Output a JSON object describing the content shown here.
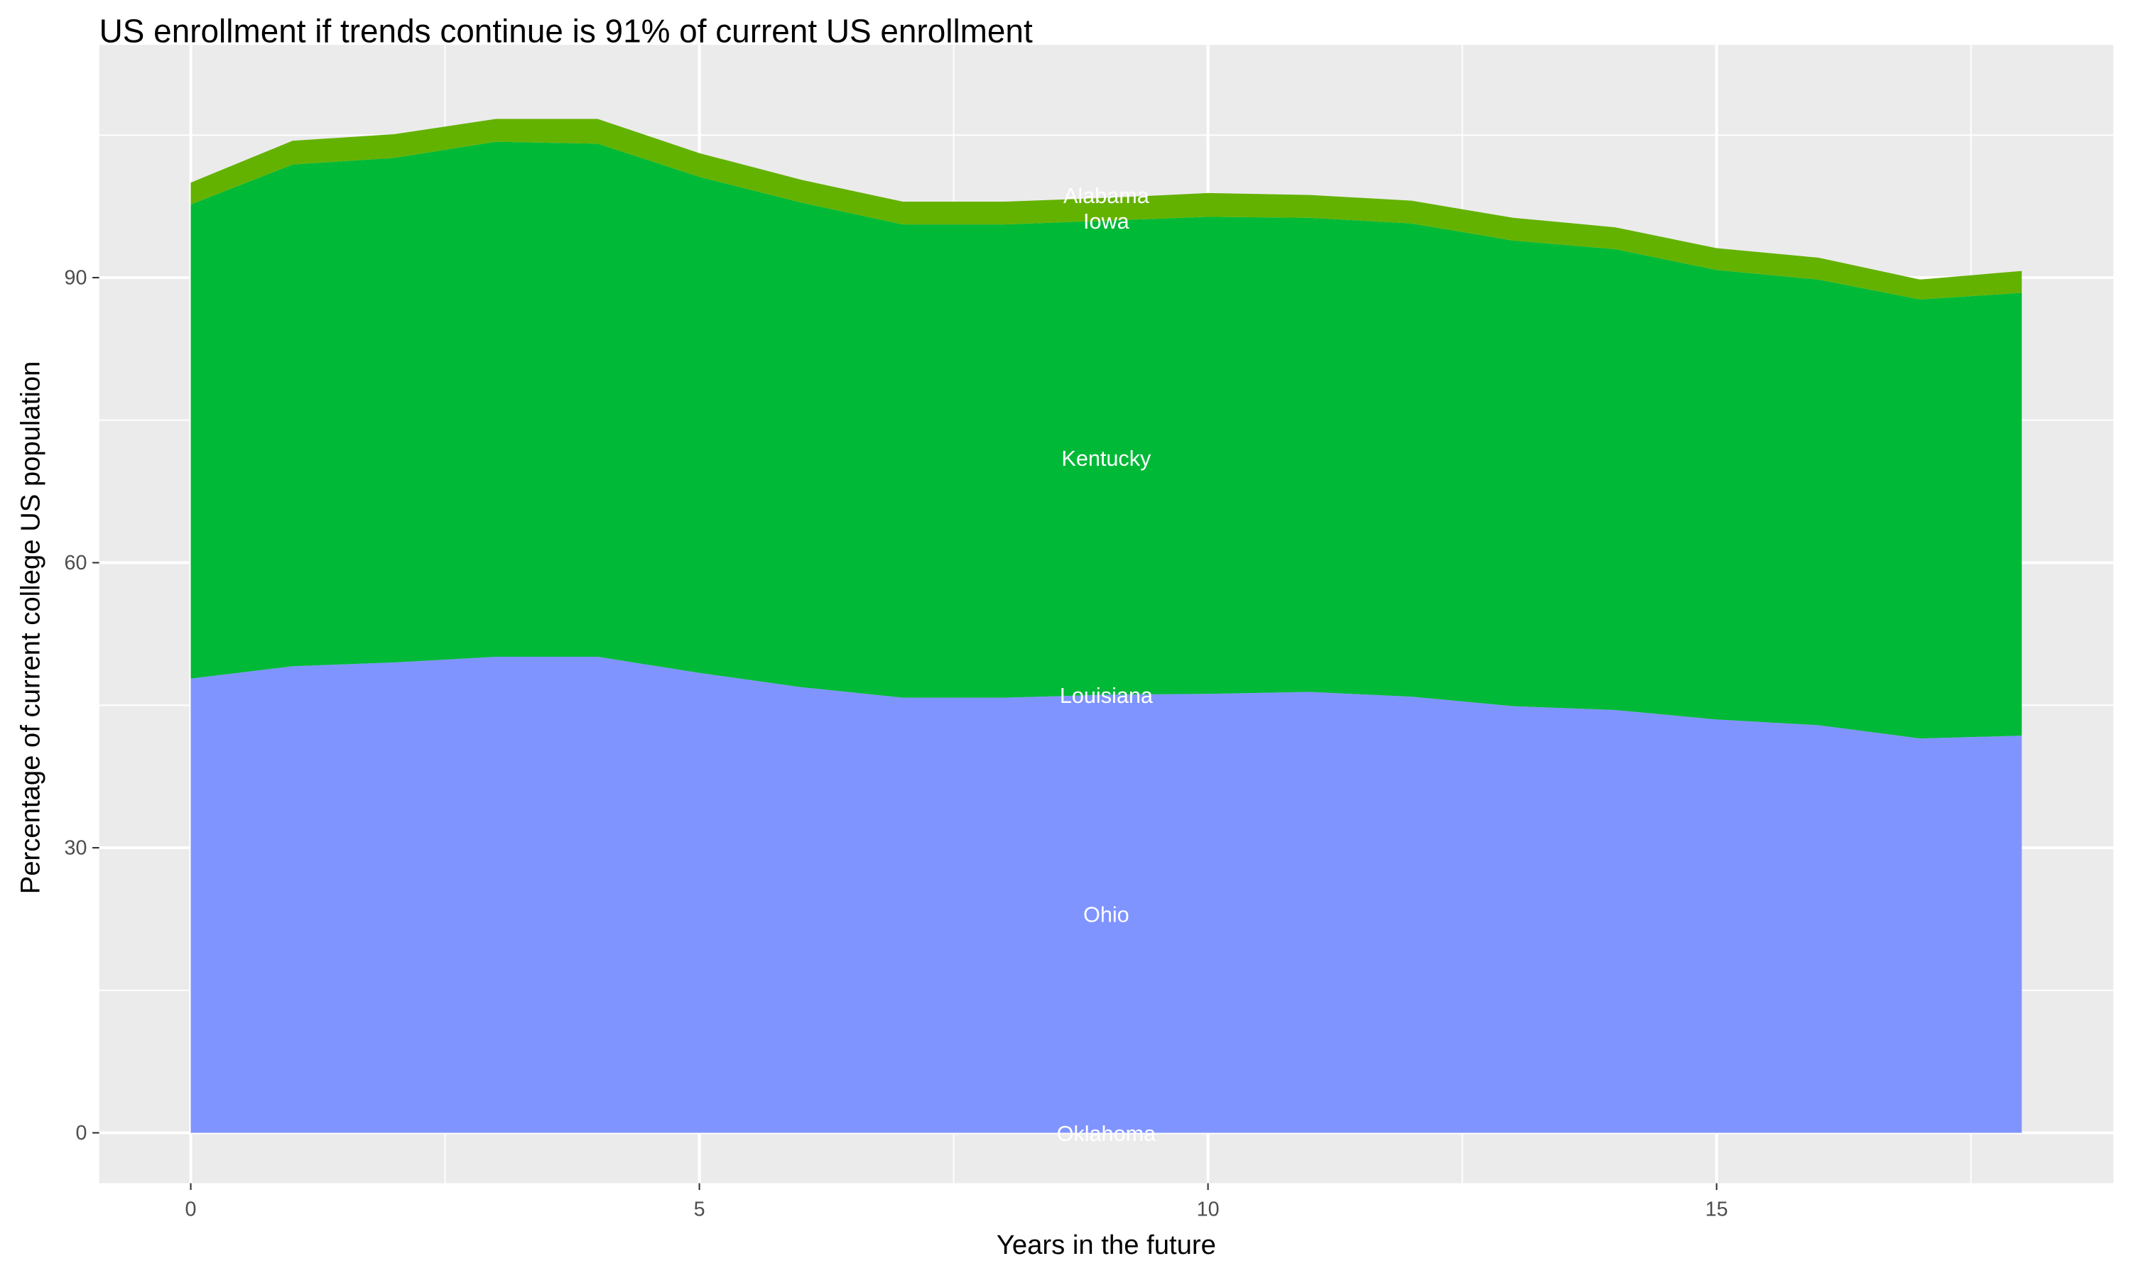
{
  "chart_data": {
    "type": "area",
    "stacked": true,
    "title": "US enrollment if trends continue is 91% of current US enrollment",
    "xlabel": "Years in the future",
    "ylabel": "Percentage of current college US population",
    "xlim": [
      -0.9,
      18.9
    ],
    "ylim": [
      -5.3,
      114.5
    ],
    "x_ticks": [
      0,
      5,
      10,
      15
    ],
    "y_ticks": [
      0,
      30,
      60,
      90
    ],
    "grid": true,
    "legend": "none (direct labels at year 9)",
    "panel_background": "#EBEBEB",
    "x": [
      0,
      1,
      2,
      3,
      4,
      5,
      6,
      7,
      8,
      9,
      10,
      11,
      12,
      13,
      14,
      15,
      16,
      17,
      18
    ],
    "series": [
      {
        "name": "Oklahoma",
        "color": "#F564E3",
        "values": [
          0,
          0,
          0,
          0,
          0,
          0,
          0,
          0,
          0,
          0,
          0,
          0,
          0,
          0,
          0,
          0,
          0,
          0,
          0
        ]
      },
      {
        "name": "Ohio",
        "color": "#8094FF",
        "values": [
          47.8,
          49.1,
          49.5,
          50.1,
          50.1,
          48.4,
          46.9,
          45.8,
          45.8,
          46.1,
          46.2,
          46.4,
          45.9,
          44.9,
          44.5,
          43.5,
          42.9,
          41.5,
          41.8
        ]
      },
      {
        "name": "Louisiana",
        "color": "#00BFC4",
        "values": [
          0,
          0,
          0,
          0,
          0,
          0,
          0,
          0,
          0,
          0,
          0,
          0,
          0,
          0,
          0,
          0,
          0,
          0,
          0
        ]
      },
      {
        "name": "Kentucky",
        "color": "#00B937",
        "values": [
          49.9,
          52.8,
          53.1,
          54.2,
          54.0,
          52.2,
          51.0,
          49.8,
          49.8,
          49.9,
          50.2,
          49.9,
          49.8,
          49.0,
          48.5,
          47.3,
          46.9,
          46.2,
          46.6
        ]
      },
      {
        "name": "Iowa",
        "color": "#B79F00",
        "values": [
          0,
          0,
          0,
          0,
          0,
          0,
          0,
          0,
          0,
          0,
          0,
          0,
          0,
          0,
          0,
          0,
          0,
          0,
          0
        ]
      },
      {
        "name": "Alabama",
        "color": "#64B200",
        "values": [
          2.3,
          2.5,
          2.5,
          2.4,
          2.6,
          2.5,
          2.4,
          2.4,
          2.4,
          2.4,
          2.5,
          2.4,
          2.4,
          2.4,
          2.3,
          2.3,
          2.3,
          2.1,
          2.3
        ]
      }
    ],
    "label_x": 9
  }
}
